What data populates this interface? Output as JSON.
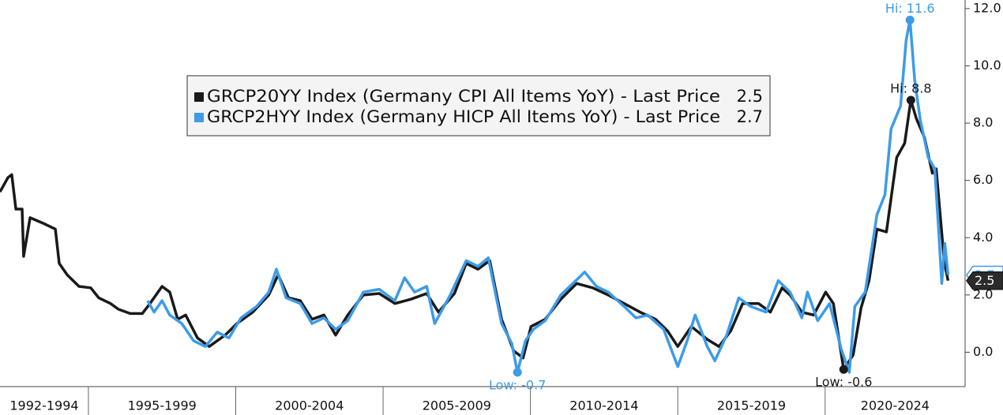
{
  "chart_data": {
    "type": "line",
    "xlim": [
      1992,
      2024.75
    ],
    "ylim": [
      -1.2,
      12.3
    ],
    "xticks": [
      {
        "value": 1992,
        "label": "1992-1994"
      },
      {
        "value": 1995,
        "label": "1995-1999"
      },
      {
        "value": 2000,
        "label": "2000-2004"
      },
      {
        "value": 2005,
        "label": "2005-2009"
      },
      {
        "value": 2010,
        "label": "2010-2014"
      },
      {
        "value": 2015,
        "label": "2015-2019"
      },
      {
        "value": 2020,
        "label": "2020-2024"
      }
    ],
    "yticks": [
      {
        "value": 0,
        "label": "0.0"
      },
      {
        "value": 2,
        "label": "2.0"
      },
      {
        "value": 4,
        "label": "4.0"
      },
      {
        "value": 6,
        "label": "6.0"
      },
      {
        "value": 8,
        "label": "8.0"
      },
      {
        "value": 10,
        "label": "10.0"
      },
      {
        "value": 12,
        "label": "12.0"
      }
    ],
    "grid": false,
    "series": [
      {
        "name": "GRCP20YY Index (Germany CPI All Items YoY) - Last Price",
        "color": "#1a1a1a",
        "last_price": 2.5,
        "x": [
          1992.0,
          1992.27,
          1992.4,
          1992.54,
          1992.75,
          1992.8,
          1993.02,
          1993.47,
          1993.88,
          1994.01,
          1994.28,
          1994.68,
          1995.08,
          1995.35,
          1995.75,
          1996.02,
          1996.42,
          1996.83,
          1997.09,
          1997.5,
          1997.76,
          1998.03,
          1998.3,
          1998.7,
          1999.1,
          1999.64,
          2000.04,
          2000.58,
          2001.12,
          2001.44,
          2001.79,
          2002.19,
          2002.59,
          2002.99,
          2003.39,
          2003.8,
          2004.33,
          2004.87,
          2005.4,
          2005.94,
          2006.48,
          2006.88,
          2007.42,
          2007.82,
          2008.22,
          2008.62,
          2009.02,
          2009.43,
          2009.75,
          2010.02,
          2010.5,
          2011.03,
          2011.57,
          2012.11,
          2012.64,
          2013.18,
          2013.72,
          2014.25,
          2014.65,
          2015.0,
          2015.46,
          2016.0,
          2016.4,
          2016.8,
          2017.2,
          2017.74,
          2018.14,
          2018.54,
          2018.81,
          2019.21,
          2019.61,
          2020.02,
          2020.28,
          2020.63,
          2020.95,
          2021.22,
          2021.49,
          2021.76,
          2022.08,
          2022.43,
          2022.7,
          2022.91,
          2023.1,
          2023.37,
          2023.64,
          2023.77,
          2024.04,
          2024.17
        ],
        "values": [
          5.6,
          6.1,
          6.2,
          5.0,
          5.0,
          3.35,
          4.7,
          4.5,
          4.3,
          3.1,
          2.7,
          2.3,
          2.25,
          1.9,
          1.7,
          1.5,
          1.35,
          1.35,
          1.7,
          2.3,
          2.1,
          1.15,
          1.3,
          0.5,
          0.2,
          0.6,
          1.0,
          1.4,
          2.0,
          2.7,
          1.9,
          1.8,
          1.15,
          1.3,
          0.6,
          1.3,
          2.0,
          2.05,
          1.7,
          1.85,
          2.05,
          1.4,
          2.05,
          3.1,
          2.9,
          3.2,
          1.15,
          0.05,
          -0.2,
          0.9,
          1.15,
          1.85,
          2.4,
          2.25,
          2.0,
          1.7,
          1.4,
          1.15,
          0.75,
          0.2,
          0.9,
          0.45,
          0.2,
          0.75,
          1.7,
          1.7,
          1.4,
          2.25,
          2.0,
          1.4,
          1.3,
          2.1,
          1.7,
          -0.6,
          -0.1,
          1.55,
          2.5,
          4.3,
          4.2,
          6.8,
          7.3,
          8.8,
          8.15,
          7.5,
          6.25,
          6.4,
          3.2,
          2.5
        ]
      },
      {
        "name": "GRCP2HYY Index (Germany HICP All Items YoY) - Last Price",
        "color": "#3d9be9",
        "last_price": 2.7,
        "x": [
          1997.01,
          1997.23,
          1997.5,
          1997.76,
          1998.17,
          1998.57,
          1998.97,
          1999.37,
          1999.77,
          2000.18,
          2000.71,
          2001.12,
          2001.38,
          2001.71,
          2002.19,
          2002.59,
          2002.99,
          2003.39,
          2003.8,
          2004.33,
          2004.87,
          2005.4,
          2005.73,
          2006.07,
          2006.48,
          2006.75,
          2007.28,
          2007.82,
          2008.22,
          2008.57,
          2009.02,
          2009.37,
          2009.56,
          2009.83,
          2010.1,
          2010.5,
          2011.03,
          2011.44,
          2011.84,
          2012.24,
          2012.64,
          2013.18,
          2013.58,
          2013.98,
          2014.52,
          2015.0,
          2015.32,
          2015.59,
          2016.0,
          2016.26,
          2016.66,
          2017.07,
          2017.47,
          2018.0,
          2018.41,
          2018.81,
          2019.21,
          2019.4,
          2019.75,
          2020.15,
          2020.55,
          2020.82,
          2021.01,
          2021.36,
          2021.76,
          2022.03,
          2022.24,
          2022.56,
          2022.75,
          2022.88,
          2023.04,
          2023.23,
          2023.5,
          2023.72,
          2023.85,
          2023.96,
          2024.06,
          2024.17
        ],
        "values": [
          1.8,
          1.4,
          1.8,
          1.3,
          1.0,
          0.4,
          0.2,
          0.7,
          0.5,
          1.2,
          1.6,
          2.1,
          2.9,
          1.9,
          1.7,
          1.0,
          1.2,
          0.8,
          1.1,
          2.1,
          2.2,
          1.8,
          2.6,
          2.1,
          2.3,
          1.0,
          2.0,
          3.2,
          3.0,
          3.3,
          1.0,
          0.3,
          -0.7,
          0.4,
          0.8,
          1.1,
          2.0,
          2.4,
          2.8,
          2.3,
          2.1,
          1.6,
          1.2,
          1.3,
          0.8,
          -0.5,
          0.4,
          1.3,
          0.2,
          -0.3,
          0.6,
          1.9,
          1.6,
          1.4,
          2.5,
          2.1,
          1.2,
          2.1,
          1.1,
          1.7,
          0.1,
          -0.7,
          1.6,
          2.1,
          4.8,
          5.5,
          7.8,
          8.6,
          10.9,
          11.6,
          9.5,
          8.1,
          6.8,
          6.4,
          4.3,
          2.4,
          3.8,
          2.7
        ]
      }
    ],
    "annotations": [
      {
        "text": "Hi: 11.6",
        "series": 1,
        "x": 2022.88,
        "y": 11.6
      },
      {
        "text": "Hi: 8.8",
        "series": 0,
        "x": 2022.91,
        "y": 8.8
      },
      {
        "text": "Low: -0.7",
        "series": 1,
        "x": 2009.56,
        "y": -0.7
      },
      {
        "text": "Low: -0.6",
        "series": 0,
        "x": 2020.63,
        "y": -0.6
      }
    ]
  }
}
